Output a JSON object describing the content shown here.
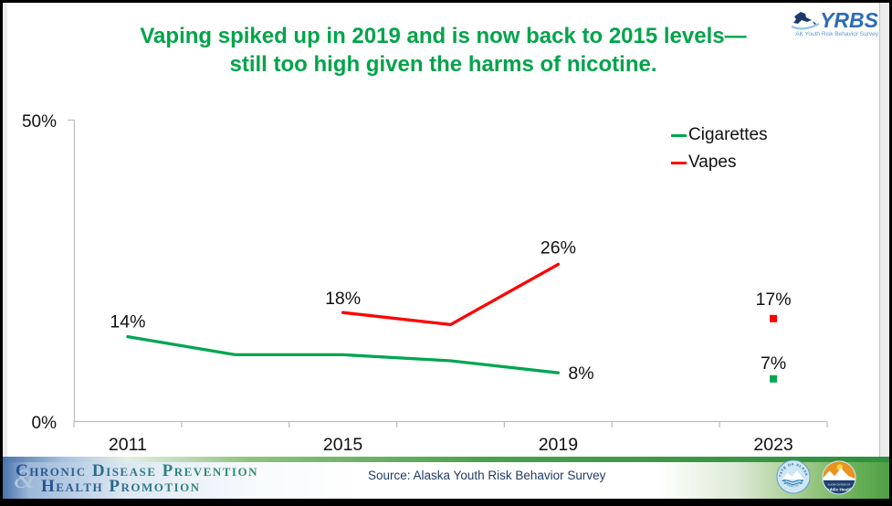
{
  "slide": {
    "title_line1": "Vaping spiked up in 2019 and is now back to 2015 levels—",
    "title_line2": "still too high given the harms of nicotine.",
    "title_color": "#00A44A"
  },
  "logo_yrbs": {
    "acronym": "YRBS",
    "subtitle": "AK Youth Risk Behavior Survey"
  },
  "legend": [
    {
      "label": "Cigarettes",
      "color": "#00A651"
    },
    {
      "label": "Vapes",
      "color": "#FE0000"
    }
  ],
  "chart_data": {
    "type": "line",
    "title": "Vaping spiked up in 2019 and is now back to 2015 levels— still too high given the harms of nicotine.",
    "categories": [
      "2011",
      "2013",
      "2015",
      "2017",
      "2019",
      "2021",
      "2023"
    ],
    "x_tick_labels_shown": [
      "2011",
      "2015",
      "2019",
      "2023"
    ],
    "ylim": [
      0,
      50
    ],
    "y_tick_labels": [
      {
        "value": 0,
        "label": "0%"
      },
      {
        "value": 50,
        "label": "50%"
      }
    ],
    "grid": false,
    "legend_position": "top-right",
    "series": [
      {
        "name": "Cigarettes",
        "color": "#00A651",
        "values": [
          14,
          11,
          11,
          10,
          8,
          null,
          7
        ]
      },
      {
        "name": "Vapes",
        "color": "#FE0000",
        "values": [
          null,
          null,
          18,
          16,
          26,
          null,
          17
        ]
      }
    ],
    "point_labels": [
      {
        "series": "Cigarettes",
        "category": "2011",
        "text": "14%"
      },
      {
        "series": "Cigarettes",
        "category": "2019",
        "text": "8%"
      },
      {
        "series": "Cigarettes",
        "category": "2023",
        "text": "7%"
      },
      {
        "series": "Vapes",
        "category": "2015",
        "text": "18%"
      },
      {
        "series": "Vapes",
        "category": "2019",
        "text": "26%"
      },
      {
        "series": "Vapes",
        "category": "2023",
        "text": "17%"
      }
    ]
  },
  "footer": {
    "org_line1": "Chronic Disease Prevention",
    "org_amp": "&",
    "org_line2": "Health Promotion",
    "source": "Source: Alaska Youth Risk Behavior Survey",
    "seal_top_text": "STATE OF ALASKA",
    "seal_bottom_text": "DEPARTMENT OF HEALTH",
    "ph_line1": "ALASKA DIVISION OF",
    "ph_line2": "Public Health"
  }
}
